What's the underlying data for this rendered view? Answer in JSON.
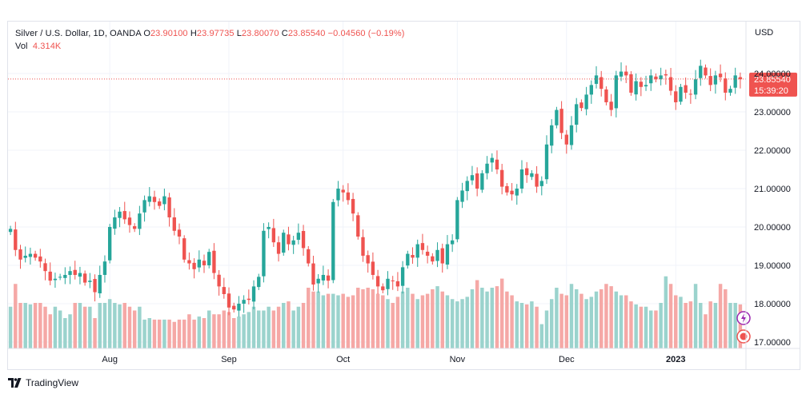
{
  "legend": {
    "symbol": "Silver / U.S. Dollar, 1D, OANDA",
    "o_label": "O",
    "o_value": "23.90100",
    "h_label": "H",
    "h_value": "23.97735",
    "l_label": "L",
    "l_value": "23.80070",
    "c_label": "C",
    "c_value": "23.85540",
    "change": "−0.04560 (−0.19%)",
    "vol_label": "Vol",
    "vol_value": "4.314K"
  },
  "price_axis": {
    "currency": "USD",
    "ticks": [
      "24.00000",
      "23.00000",
      "22.00000",
      "21.00000",
      "20.00000",
      "19.00000",
      "18.00000",
      "17.00000"
    ]
  },
  "last_price": {
    "price": "23.85540",
    "countdown": "15:39:20"
  },
  "time_axis": {
    "labels": [
      "Aug",
      "Sep",
      "Oct",
      "Nov",
      "Dec",
      "2023"
    ]
  },
  "branding": {
    "text": "TradingView"
  },
  "colors": {
    "up": "#26a69a",
    "down": "#ef5350",
    "up_vol": "#9bd3cd",
    "down_vol": "#f5a8a6",
    "grid": "#f0f3fa"
  },
  "chart_data": {
    "type": "candlestick",
    "ylim": [
      16.85,
      25.2
    ],
    "price_ticks": [
      24,
      23,
      22,
      21,
      20,
      19,
      18,
      17
    ],
    "x_labels": [
      {
        "label": "Aug",
        "index": 20
      },
      {
        "label": "Sep",
        "index": 44
      },
      {
        "label": "Oct",
        "index": 67
      },
      {
        "label": "Nov",
        "index": 90
      },
      {
        "label": "Dec",
        "index": 112
      },
      {
        "label": "2023",
        "index": 134
      }
    ],
    "close": [
      19.95,
      19.4,
      19.15,
      19.25,
      19.3,
      19.2,
      19.1,
      18.85,
      18.6,
      18.65,
      18.7,
      18.75,
      18.85,
      18.75,
      18.8,
      18.55,
      18.6,
      18.3,
      18.75,
      19.1,
      20.0,
      20.25,
      20.4,
      20.2,
      20.05,
      19.95,
      20.35,
      20.7,
      20.8,
      20.65,
      20.55,
      20.8,
      20.25,
      19.9,
      19.75,
      19.15,
      19.05,
      18.9,
      19.15,
      19.0,
      19.35,
      18.8,
      18.45,
      18.25,
      17.9,
      17.85,
      18.0,
      18.1,
      18.1,
      18.45,
      18.7,
      19.9,
      20.0,
      19.6,
      19.3,
      19.85,
      19.55,
      19.65,
      19.85,
      19.45,
      19.05,
      18.5,
      18.65,
      18.75,
      18.6,
      20.65,
      21.0,
      20.9,
      20.7,
      20.35,
      19.75,
      19.25,
      19.05,
      18.75,
      18.45,
      18.35,
      18.65,
      18.6,
      18.45,
      18.95,
      19.3,
      19.2,
      19.55,
      19.4,
      19.25,
      19.1,
      19.4,
      19.05,
      19.55,
      19.65,
      20.7,
      20.95,
      21.2,
      21.35,
      21.0,
      21.4,
      21.65,
      21.8,
      21.5,
      21.05,
      20.9,
      20.85,
      21.0,
      21.5,
      21.35,
      21.4,
      21.05,
      21.2,
      22.15,
      22.65,
      23.05,
      22.45,
      22.15,
      22.65,
      23.2,
      23.1,
      23.45,
      23.7,
      23.95,
      23.6,
      23.25,
      23.05,
      23.95,
      24.05,
      23.95,
      23.5,
      23.8,
      23.65,
      23.7,
      23.95,
      23.85,
      23.95,
      23.95,
      23.55,
      23.25,
      23.65,
      23.5,
      23.45,
      23.85,
      24.2,
      23.95,
      23.7,
      23.95,
      23.9,
      23.5,
      23.6,
      23.95,
      23.85
    ],
    "volume": [
      0.55,
      0.85,
      0.6,
      0.6,
      0.58,
      0.6,
      0.6,
      0.55,
      0.45,
      0.55,
      0.5,
      0.4,
      0.45,
      0.6,
      0.6,
      0.55,
      0.55,
      0.4,
      0.6,
      0.6,
      0.65,
      0.6,
      0.58,
      0.6,
      0.55,
      0.5,
      0.55,
      0.38,
      0.4,
      0.38,
      0.38,
      0.38,
      0.38,
      0.35,
      0.38,
      0.38,
      0.45,
      0.38,
      0.42,
      0.4,
      0.5,
      0.45,
      0.45,
      0.5,
      0.48,
      0.4,
      0.42,
      0.45,
      0.48,
      0.55,
      0.5,
      0.5,
      0.55,
      0.5,
      0.55,
      0.6,
      0.62,
      0.5,
      0.55,
      0.6,
      0.8,
      0.75,
      0.75,
      0.7,
      0.72,
      0.72,
      0.7,
      0.72,
      0.68,
      0.7,
      0.8,
      0.78,
      0.8,
      0.78,
      0.72,
      0.7,
      0.65,
      0.6,
      0.68,
      0.75,
      0.8,
      0.72,
      0.65,
      0.7,
      0.72,
      0.78,
      0.82,
      0.75,
      0.7,
      0.65,
      0.62,
      0.65,
      0.68,
      0.78,
      0.9,
      0.8,
      0.75,
      0.8,
      0.82,
      0.92,
      0.75,
      0.7,
      0.62,
      0.6,
      0.58,
      0.62,
      0.55,
      0.32,
      0.5,
      0.65,
      0.8,
      0.72,
      0.7,
      0.85,
      0.78,
      0.72,
      0.65,
      0.68,
      0.75,
      0.78,
      0.85,
      0.82,
      0.75,
      0.7,
      0.7,
      0.62,
      0.58,
      0.55,
      0.55,
      0.5,
      0.5,
      0.6,
      0.95,
      0.85,
      0.7,
      0.68,
      0.6,
      0.62,
      0.85,
      0.6,
      0.45,
      0.62,
      0.6,
      0.85,
      0.78,
      0.6,
      0.6,
      0.58
    ]
  }
}
